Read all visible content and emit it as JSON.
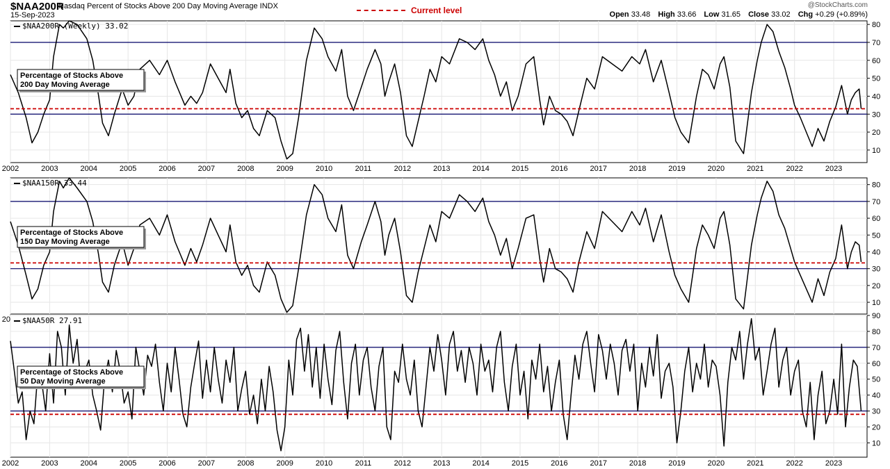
{
  "header": {
    "symbol": "$NAA200R",
    "description": "Nasdaq Percent of Stocks Above 200 Day Moving Average INDX",
    "date": "15-Sep-2023",
    "credit": "@StockCharts.com",
    "legend_label": "Current level",
    "ohlc": {
      "open_label": "Open",
      "open": "33.48",
      "high_label": "High",
      "high": "33.66",
      "low_label": "Low",
      "low": "31.65",
      "close_label": "Close",
      "close": "33.02",
      "chg_label": "Chg",
      "chg": "+0.29 (+0.89%)"
    }
  },
  "colors": {
    "line": "#000000",
    "current_level": "#cc0000",
    "threshold": "#000066",
    "grid": "#e6e6e6",
    "axis": "#000000"
  },
  "chart_data": [
    {
      "type": "line",
      "title": "$NAA200R (Weekly) 33.02",
      "annotation": [
        "Percentage of Stocks Above",
        "200 Day Moving Average"
      ],
      "x_ticks": [
        "2002",
        "2003",
        "2004",
        "2005",
        "2006",
        "2007",
        "2008",
        "2009",
        "2010",
        "2011",
        "2012",
        "2013",
        "2014",
        "2015",
        "2016",
        "2017",
        "2018",
        "2019",
        "2020",
        "2021",
        "2022",
        "2023"
      ],
      "y_ticks": [
        10,
        20,
        30,
        40,
        50,
        60,
        70,
        80
      ],
      "ylim": [
        3,
        82
      ],
      "xlim": [
        2002.0,
        2023.85
      ],
      "reference_lines": [
        70,
        30
      ],
      "current_level": 33.02,
      "x": [
        2002.0,
        2002.2,
        2002.4,
        2002.55,
        2002.7,
        2002.85,
        2003.0,
        2003.1,
        2003.25,
        2003.35,
        2003.5,
        2003.7,
        2003.95,
        2004.1,
        2004.25,
        2004.35,
        2004.5,
        2004.65,
        2004.85,
        2005.0,
        2005.15,
        2005.3,
        2005.55,
        2005.8,
        2006.0,
        2006.2,
        2006.45,
        2006.6,
        2006.75,
        2006.9,
        2007.1,
        2007.3,
        2007.5,
        2007.6,
        2007.75,
        2007.9,
        2008.05,
        2008.2,
        2008.35,
        2008.55,
        2008.75,
        2008.9,
        2009.05,
        2009.2,
        2009.35,
        2009.55,
        2009.75,
        2009.95,
        2010.1,
        2010.3,
        2010.45,
        2010.6,
        2010.75,
        2010.95,
        2011.1,
        2011.3,
        2011.45,
        2011.55,
        2011.65,
        2011.8,
        2011.95,
        2012.1,
        2012.25,
        2012.4,
        2012.55,
        2012.7,
        2012.85,
        2013.0,
        2013.2,
        2013.45,
        2013.65,
        2013.85,
        2014.05,
        2014.2,
        2014.35,
        2014.5,
        2014.65,
        2014.8,
        2014.95,
        2015.15,
        2015.35,
        2015.5,
        2015.6,
        2015.75,
        2015.9,
        2016.05,
        2016.2,
        2016.35,
        2016.5,
        2016.7,
        2016.9,
        2017.1,
        2017.35,
        2017.6,
        2017.85,
        2018.05,
        2018.2,
        2018.4,
        2018.6,
        2018.8,
        2018.95,
        2019.1,
        2019.3,
        2019.5,
        2019.65,
        2019.8,
        2019.95,
        2020.1,
        2020.2,
        2020.35,
        2020.5,
        2020.7,
        2020.9,
        2021.05,
        2021.15,
        2021.3,
        2021.45,
        2021.6,
        2021.75,
        2021.9,
        2022.0,
        2022.15,
        2022.3,
        2022.45,
        2022.6,
        2022.75,
        2022.9,
        2023.05,
        2023.2,
        2023.35,
        2023.45,
        2023.55,
        2023.65,
        2023.7
      ],
      "y": [
        52,
        42,
        28,
        14,
        20,
        30,
        38,
        62,
        80,
        78,
        82,
        80,
        72,
        60,
        40,
        25,
        18,
        30,
        44,
        35,
        40,
        55,
        60,
        52,
        60,
        48,
        35,
        40,
        36,
        42,
        58,
        50,
        42,
        55,
        36,
        28,
        32,
        22,
        18,
        32,
        28,
        15,
        5,
        8,
        28,
        60,
        78,
        72,
        62,
        54,
        66,
        40,
        32,
        45,
        55,
        66,
        58,
        40,
        48,
        58,
        42,
        18,
        12,
        26,
        40,
        55,
        48,
        62,
        58,
        72,
        70,
        66,
        72,
        60,
        52,
        40,
        48,
        32,
        40,
        58,
        62,
        38,
        24,
        40,
        32,
        30,
        26,
        18,
        32,
        50,
        44,
        62,
        58,
        54,
        62,
        58,
        66,
        48,
        60,
        42,
        28,
        20,
        14,
        40,
        55,
        52,
        44,
        58,
        62,
        45,
        15,
        8,
        42,
        60,
        70,
        80,
        76,
        65,
        56,
        44,
        35,
        28,
        20,
        12,
        22,
        15,
        26,
        34,
        46,
        30,
        38,
        42,
        44,
        33
      ]
    },
    {
      "type": "line",
      "title": "$NAA150R 33.44",
      "annotation": [
        "Percentage of Stocks Above",
        "150 Day Moving Average"
      ],
      "x_ticks": [
        "2002",
        "2003",
        "2004",
        "2005",
        "2006",
        "2007",
        "2008",
        "2009",
        "2010",
        "2011",
        "2012",
        "2013",
        "2014",
        "2015",
        "2016",
        "2017",
        "2018",
        "2019",
        "2020",
        "2021",
        "2022",
        "2023"
      ],
      "y_ticks": [
        10,
        20,
        30,
        40,
        50,
        60,
        70,
        80
      ],
      "ylim": [
        3,
        84
      ],
      "xlim": [
        2002.0,
        2023.85
      ],
      "reference_lines": [
        70,
        30
      ],
      "current_level": 33.44,
      "x": [
        2002.0,
        2002.2,
        2002.4,
        2002.55,
        2002.7,
        2002.85,
        2003.0,
        2003.1,
        2003.25,
        2003.35,
        2003.5,
        2003.7,
        2003.95,
        2004.1,
        2004.25,
        2004.35,
        2004.5,
        2004.65,
        2004.85,
        2005.0,
        2005.15,
        2005.3,
        2005.55,
        2005.8,
        2006.0,
        2006.2,
        2006.45,
        2006.6,
        2006.75,
        2006.9,
        2007.1,
        2007.3,
        2007.5,
        2007.6,
        2007.75,
        2007.9,
        2008.05,
        2008.2,
        2008.35,
        2008.55,
        2008.75,
        2008.9,
        2009.05,
        2009.2,
        2009.35,
        2009.55,
        2009.75,
        2009.95,
        2010.1,
        2010.3,
        2010.45,
        2010.6,
        2010.75,
        2010.95,
        2011.1,
        2011.3,
        2011.45,
        2011.55,
        2011.65,
        2011.8,
        2011.95,
        2012.1,
        2012.25,
        2012.4,
        2012.55,
        2012.7,
        2012.85,
        2013.0,
        2013.2,
        2013.45,
        2013.65,
        2013.85,
        2014.05,
        2014.2,
        2014.35,
        2014.5,
        2014.65,
        2014.8,
        2014.95,
        2015.15,
        2015.35,
        2015.5,
        2015.6,
        2015.75,
        2015.9,
        2016.05,
        2016.2,
        2016.35,
        2016.5,
        2016.7,
        2016.9,
        2017.1,
        2017.35,
        2017.6,
        2017.85,
        2018.05,
        2018.2,
        2018.4,
        2018.6,
        2018.8,
        2018.95,
        2019.1,
        2019.3,
        2019.5,
        2019.65,
        2019.8,
        2019.95,
        2020.1,
        2020.2,
        2020.35,
        2020.5,
        2020.7,
        2020.9,
        2021.05,
        2021.15,
        2021.3,
        2021.45,
        2021.6,
        2021.75,
        2021.9,
        2022.0,
        2022.15,
        2022.3,
        2022.45,
        2022.6,
        2022.75,
        2022.9,
        2023.05,
        2023.2,
        2023.35,
        2023.45,
        2023.55,
        2023.65,
        2023.7
      ],
      "y": [
        58,
        44,
        26,
        12,
        18,
        32,
        40,
        64,
        82,
        78,
        84,
        78,
        70,
        58,
        38,
        22,
        16,
        32,
        46,
        32,
        42,
        56,
        60,
        50,
        62,
        46,
        32,
        42,
        34,
        44,
        60,
        50,
        40,
        56,
        34,
        26,
        32,
        20,
        16,
        34,
        26,
        12,
        4,
        8,
        30,
        62,
        80,
        74,
        60,
        52,
        68,
        38,
        30,
        46,
        56,
        70,
        58,
        38,
        50,
        60,
        40,
        14,
        10,
        28,
        42,
        56,
        46,
        64,
        60,
        74,
        70,
        64,
        72,
        58,
        50,
        38,
        48,
        30,
        42,
        60,
        62,
        36,
        22,
        42,
        30,
        28,
        24,
        16,
        34,
        52,
        42,
        64,
        58,
        52,
        64,
        56,
        66,
        46,
        62,
        40,
        26,
        18,
        10,
        42,
        56,
        50,
        42,
        60,
        64,
        44,
        12,
        6,
        44,
        62,
        72,
        82,
        76,
        62,
        54,
        42,
        34,
        26,
        18,
        10,
        24,
        14,
        28,
        36,
        56,
        30,
        40,
        46,
        44,
        34
      ]
    },
    {
      "type": "line",
      "title": "$NAA50R 27.91",
      "annotation": [
        "Percentage of Stocks Above",
        "50 Day Moving Average"
      ],
      "x_ticks": [
        "2002",
        "2003",
        "2004",
        "2005",
        "2006",
        "2007",
        "2008",
        "2009",
        "2010",
        "2011",
        "2012",
        "2013",
        "2014",
        "2015",
        "2016",
        "2017",
        "2018",
        "2019",
        "2020",
        "2021",
        "2022",
        "2023"
      ],
      "y_ticks": [
        10,
        20,
        30,
        40,
        50,
        60,
        70,
        80,
        90
      ],
      "ylim": [
        1,
        90
      ],
      "xlim": [
        2002.0,
        2023.85
      ],
      "reference_lines": [
        70,
        30
      ],
      "current_level": 27.91,
      "x": [
        2002.0,
        2002.1,
        2002.2,
        2002.3,
        2002.4,
        2002.5,
        2002.6,
        2002.7,
        2002.8,
        2002.9,
        2003.0,
        2003.1,
        2003.2,
        2003.3,
        2003.4,
        2003.5,
        2003.6,
        2003.7,
        2003.8,
        2003.9,
        2004.0,
        2004.1,
        2004.2,
        2004.3,
        2004.4,
        2004.5,
        2004.6,
        2004.7,
        2004.8,
        2004.9,
        2005.0,
        2005.1,
        2005.2,
        2005.3,
        2005.4,
        2005.5,
        2005.6,
        2005.7,
        2005.8,
        2005.9,
        2006.0,
        2006.1,
        2006.2,
        2006.3,
        2006.4,
        2006.5,
        2006.6,
        2006.7,
        2006.8,
        2006.9,
        2007.0,
        2007.1,
        2007.2,
        2007.3,
        2007.4,
        2007.5,
        2007.6,
        2007.7,
        2007.8,
        2007.9,
        2008.0,
        2008.1,
        2008.2,
        2008.3,
        2008.4,
        2008.5,
        2008.6,
        2008.7,
        2008.8,
        2008.9,
        2009.0,
        2009.1,
        2009.2,
        2009.3,
        2009.4,
        2009.5,
        2009.6,
        2009.7,
        2009.8,
        2009.9,
        2010.0,
        2010.1,
        2010.2,
        2010.3,
        2010.4,
        2010.5,
        2010.6,
        2010.7,
        2010.8,
        2010.9,
        2011.0,
        2011.1,
        2011.2,
        2011.3,
        2011.4,
        2011.5,
        2011.6,
        2011.7,
        2011.8,
        2011.9,
        2012.0,
        2012.1,
        2012.2,
        2012.3,
        2012.4,
        2012.5,
        2012.6,
        2012.7,
        2012.8,
        2012.9,
        2013.0,
        2013.1,
        2013.2,
        2013.3,
        2013.4,
        2013.5,
        2013.6,
        2013.7,
        2013.8,
        2013.9,
        2014.0,
        2014.1,
        2014.2,
        2014.3,
        2014.4,
        2014.5,
        2014.6,
        2014.7,
        2014.8,
        2014.9,
        2015.0,
        2015.1,
        2015.2,
        2015.3,
        2015.4,
        2015.5,
        2015.6,
        2015.7,
        2015.8,
        2015.9,
        2016.0,
        2016.1,
        2016.2,
        2016.3,
        2016.4,
        2016.5,
        2016.6,
        2016.7,
        2016.8,
        2016.9,
        2017.0,
        2017.1,
        2017.2,
        2017.3,
        2017.4,
        2017.5,
        2017.6,
        2017.7,
        2017.8,
        2017.9,
        2018.0,
        2018.1,
        2018.2,
        2018.3,
        2018.4,
        2018.5,
        2018.6,
        2018.7,
        2018.8,
        2018.9,
        2019.0,
        2019.1,
        2019.2,
        2019.3,
        2019.4,
        2019.5,
        2019.6,
        2019.7,
        2019.8,
        2019.9,
        2020.0,
        2020.1,
        2020.2,
        2020.3,
        2020.4,
        2020.5,
        2020.6,
        2020.7,
        2020.8,
        2020.9,
        2021.0,
        2021.1,
        2021.2,
        2021.3,
        2021.4,
        2021.5,
        2021.6,
        2021.7,
        2021.8,
        2021.9,
        2022.0,
        2022.1,
        2022.2,
        2022.3,
        2022.4,
        2022.5,
        2022.6,
        2022.7,
        2022.8,
        2022.9,
        2023.0,
        2023.1,
        2023.2,
        2023.3,
        2023.4,
        2023.5,
        2023.6,
        2023.7
      ],
      "y": [
        74,
        55,
        35,
        42,
        12,
        30,
        22,
        55,
        48,
        30,
        66,
        35,
        80,
        70,
        40,
        84,
        60,
        75,
        45,
        55,
        62,
        40,
        30,
        18,
        50,
        62,
        42,
        68,
        55,
        35,
        42,
        25,
        70,
        55,
        40,
        65,
        58,
        72,
        48,
        30,
        60,
        42,
        70,
        50,
        28,
        20,
        45,
        60,
        74,
        38,
        62,
        42,
        70,
        50,
        35,
        62,
        48,
        70,
        30,
        44,
        55,
        28,
        40,
        22,
        50,
        30,
        58,
        42,
        18,
        5,
        20,
        62,
        40,
        75,
        82,
        55,
        78,
        45,
        70,
        38,
        72,
        50,
        34,
        68,
        80,
        48,
        25,
        60,
        72,
        40,
        62,
        70,
        45,
        30,
        58,
        70,
        20,
        12,
        55,
        48,
        72,
        50,
        40,
        62,
        30,
        20,
        45,
        70,
        55,
        78,
        62,
        40,
        72,
        80,
        55,
        68,
        48,
        70,
        60,
        40,
        72,
        55,
        62,
        42,
        70,
        80,
        48,
        30,
        58,
        72,
        40,
        55,
        25,
        62,
        50,
        72,
        42,
        58,
        30,
        48,
        62,
        28,
        12,
        40,
        65,
        50,
        72,
        80,
        60,
        42,
        78,
        68,
        50,
        72,
        60,
        40,
        68,
        75,
        55,
        72,
        30,
        60,
        45,
        70,
        52,
        78,
        38,
        55,
        60,
        45,
        10,
        30,
        55,
        70,
        42,
        60,
        50,
        72,
        45,
        62,
        58,
        40,
        8,
        48,
        70,
        62,
        80,
        50,
        72,
        88,
        62,
        70,
        40,
        55,
        72,
        82,
        45,
        62,
        70,
        40,
        55,
        62,
        30,
        20,
        48,
        12,
        40,
        55,
        22,
        30,
        50,
        28,
        72,
        20,
        45,
        62,
        58,
        30
      ]
    }
  ]
}
